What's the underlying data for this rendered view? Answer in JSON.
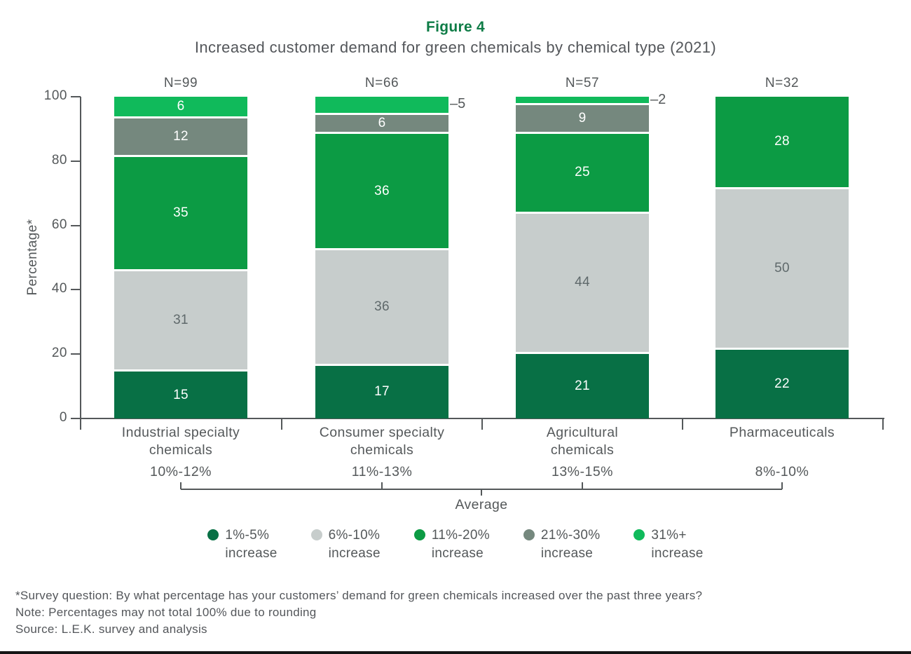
{
  "figure": {
    "title": "Figure 4",
    "subtitle": "Increased customer demand for green chemicals by chemical type (2021)"
  },
  "chart_data": {
    "type": "stacked-bar",
    "title": "Figure 4",
    "subtitle": "Increased customer demand for green chemicals by chemical type (2021)",
    "ylabel": "Percentage*",
    "ylim": [
      0,
      100
    ],
    "yticks": [
      0,
      20,
      40,
      60,
      80,
      100
    ],
    "grid": false,
    "legend_position": "bottom",
    "legend": [
      {
        "range": "1%-5%",
        "suffix": "increase",
        "color": "#087045"
      },
      {
        "range": "6%-10%",
        "suffix": "increase",
        "color": "#c7cdcc"
      },
      {
        "range": "11%-20%",
        "suffix": "increase",
        "color": "#0c9b44"
      },
      {
        "range": "21%-30%",
        "suffix": "increase",
        "color": "#75887e"
      },
      {
        "range": "31%+",
        "suffix": "increase",
        "color": "#10ba5b"
      }
    ],
    "bars": [
      {
        "category": "Industrial specialty\nchemicals",
        "n": "N=99",
        "average": "10%-12%",
        "segments": [
          15,
          31,
          35,
          12,
          6
        ]
      },
      {
        "category": "Consumer specialty\nchemicals",
        "n": "N=66",
        "average": "11%-13%",
        "segments": [
          17,
          36,
          36,
          6,
          5
        ],
        "callout": {
          "segment_index": 4,
          "label": "–5"
        }
      },
      {
        "category": "Agricultural\nchemicals",
        "n": "N=57",
        "average": "13%-15%",
        "segments": [
          21,
          44,
          25,
          9,
          2
        ],
        "callout": {
          "segment_index": 4,
          "label": "–2"
        }
      },
      {
        "category": "Pharmaceuticals",
        "n": "N=32",
        "average": "8%-10%",
        "segments": [
          22,
          50,
          28
        ]
      }
    ],
    "average_label": "Average"
  },
  "footnotes": {
    "survey": "*Survey question: By what percentage has your customers’ demand for green chemicals increased over the past three years?",
    "note": "Note: Percentages may not total 100% due to rounding",
    "source": "Source: L.E.K. survey and analysis"
  },
  "colors": {
    "title_green": "#0e7c46",
    "text_gray": "#54585a",
    "axis_gray": "#54585a",
    "light_segment_text": "#5f696b",
    "background": "#ffffff"
  }
}
